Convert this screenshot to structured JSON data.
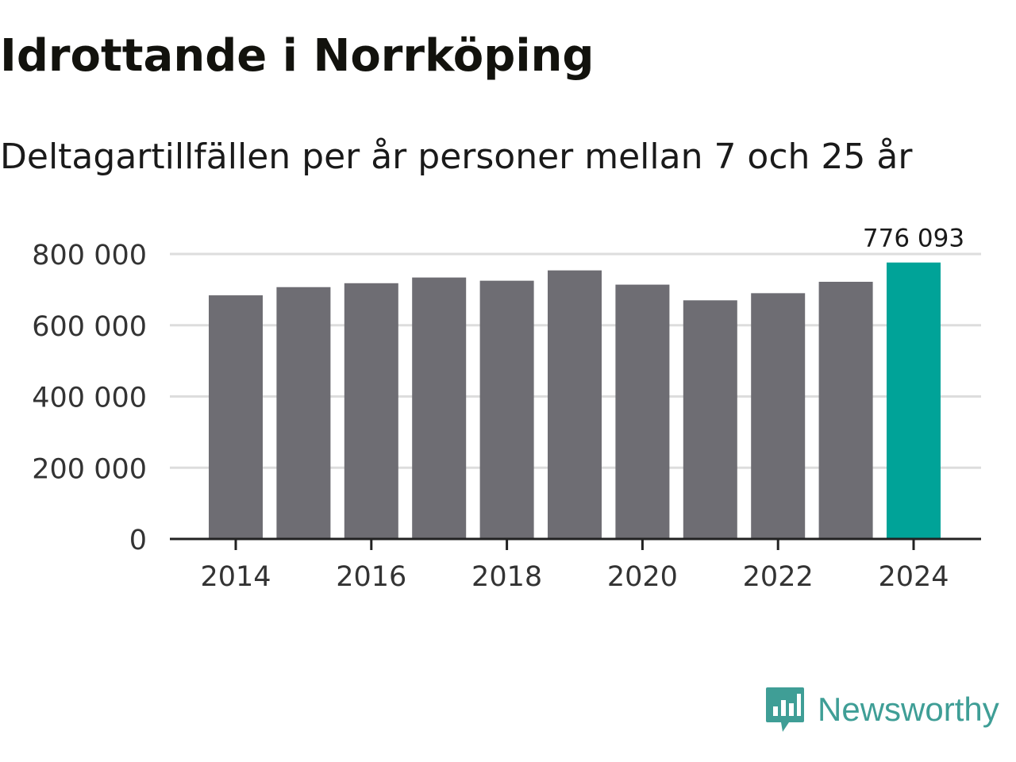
{
  "title": "Idrottande i Norrköping",
  "subtitle": "Deltagartillfällen per år personer mellan 7 och 25 år",
  "colors": {
    "bar": "#6e6d73",
    "highlight": "#00a398",
    "grid": "#dddddd",
    "axis": "#222222",
    "brand": "#3f9e96"
  },
  "brand": {
    "name": "Newsworthy",
    "icon": "chart-speech-bubble-icon"
  },
  "chart_data": {
    "type": "bar",
    "x": [
      2014,
      2015,
      2016,
      2017,
      2018,
      2019,
      2020,
      2021,
      2022,
      2023,
      2024
    ],
    "values": [
      684000,
      707000,
      718000,
      734000,
      725000,
      754000,
      714000,
      670000,
      690000,
      722000,
      776093
    ],
    "highlight_index": 10,
    "highlight_label": "776 093",
    "xticks": [
      "2014",
      "2016",
      "2018",
      "2020",
      "2022",
      "2024"
    ],
    "xtick_years": [
      2014,
      2016,
      2018,
      2020,
      2022,
      2024
    ],
    "yticks": [
      0,
      200000,
      400000,
      600000,
      800000
    ],
    "ytick_labels": [
      "0",
      "200 000",
      "400 000",
      "600 000",
      "800 000"
    ],
    "ylim": [
      0,
      800000
    ],
    "xlabel": "",
    "ylabel": "",
    "grid": true
  }
}
